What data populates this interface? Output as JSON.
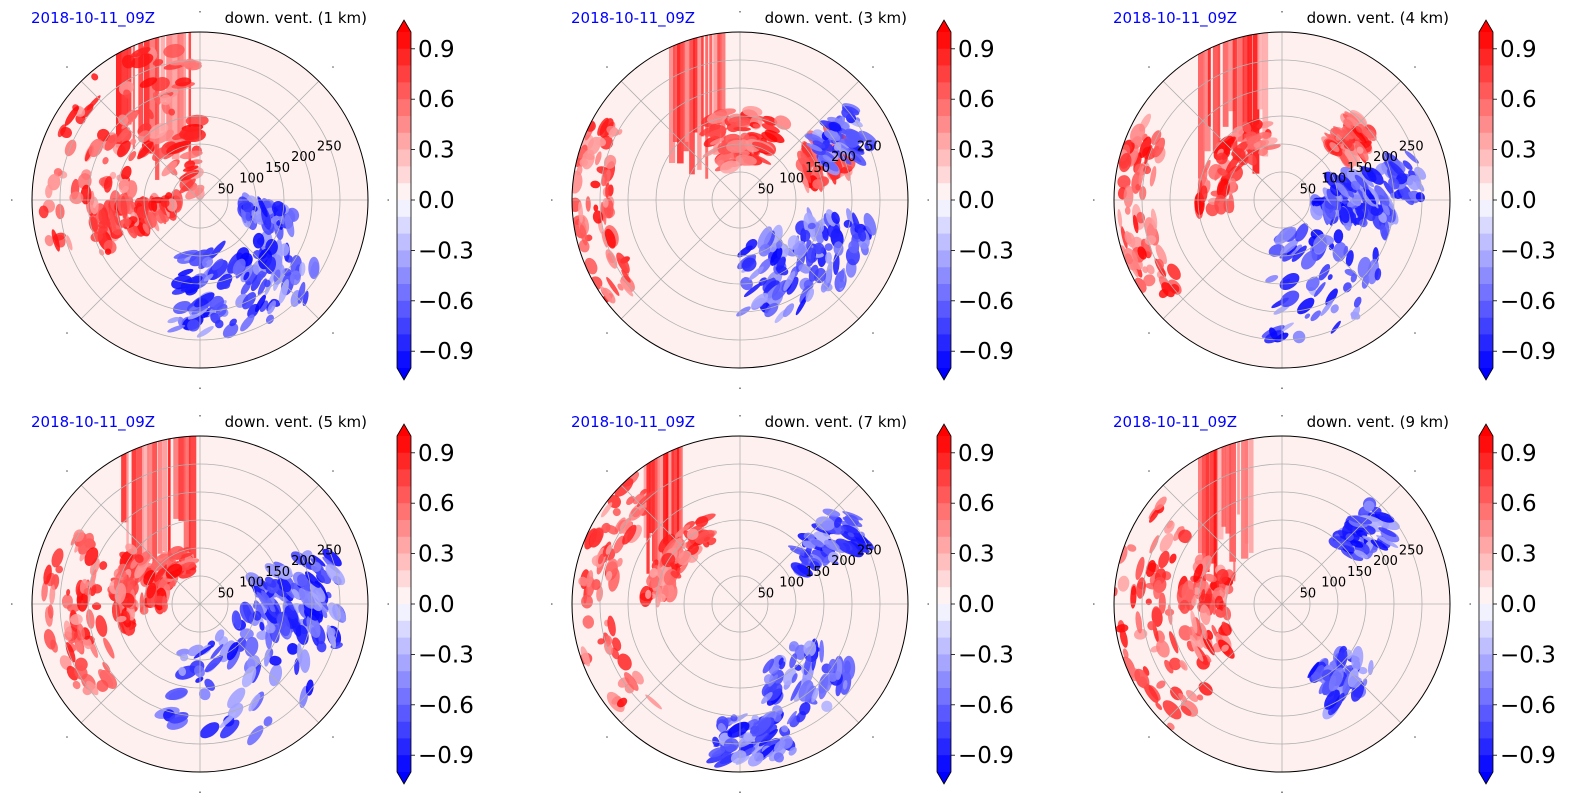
{
  "figure": {
    "rows": 2,
    "cols": 3
  },
  "colors": {
    "date_text": "#0000ff",
    "title_text": "#000000",
    "colormap": [
      "#0000ff",
      "#ffffff",
      "#ff0000"
    ],
    "grid": "#b0b0b0",
    "frame": "#000000"
  },
  "chart_data": [
    {
      "type": "heatmap",
      "projection": "polar",
      "date_label": "2018-10-11_09Z",
      "title": "down. vent. (1 km)",
      "radial_ticks": [
        "50",
        "100",
        "150",
        "200",
        "250"
      ],
      "radial_max": 300,
      "grid": true,
      "colorbar": {
        "min": -1.0,
        "max": 1.0,
        "ticks": [
          "0.9",
          "0.6",
          "0.3",
          "0.0",
          "−0.3",
          "−0.6",
          "−0.9"
        ],
        "extend": "both",
        "levels": 20
      },
      "features": {
        "red_spiral_bands": [
          [
            180,
            210,
            40,
            200
          ],
          [
            90,
            135,
            10,
            290
          ],
          [
            135,
            200,
            120,
            280
          ]
        ],
        "blue_regions": [
          [
            255,
            300,
            90,
            240
          ],
          [
            300,
            330,
            120,
            260
          ],
          [
            340,
            355,
            80,
            170
          ]
        ],
        "red_streaks_top": [
          [
            92,
            120
          ]
        ]
      }
    },
    {
      "type": "heatmap",
      "projection": "polar",
      "date_label": "2018-10-11_09Z",
      "title": "down. vent. (3 km)",
      "radial_ticks": [
        "50",
        "100",
        "150",
        "200",
        "250"
      ],
      "radial_max": 300,
      "grid": true,
      "colorbar": {
        "min": -1.0,
        "max": 1.0,
        "ticks": [
          "0.9",
          "0.6",
          "0.3",
          "0.0",
          "−0.3",
          "−0.6",
          "−0.9"
        ],
        "extend": "both",
        "levels": 20
      },
      "features": {
        "red_spiral_bands": [
          [
            150,
            220,
            230,
            300
          ],
          [
            60,
            120,
            60,
            160
          ],
          [
            10,
            40,
            120,
            220
          ]
        ],
        "blue_regions": [
          [
            270,
            320,
            80,
            220
          ],
          [
            320,
            350,
            120,
            240
          ],
          [
            20,
            40,
            160,
            260
          ]
        ],
        "red_streaks_top": [
          [
            95,
            115
          ]
        ]
      }
    },
    {
      "type": "heatmap",
      "projection": "polar",
      "date_label": "2018-10-11_09Z",
      "title": "down. vent. (4 km)",
      "radial_ticks": [
        "50",
        "100",
        "150",
        "200",
        "250"
      ],
      "radial_max": 300,
      "grid": true,
      "colorbar": {
        "min": -1.0,
        "max": 1.0,
        "ticks": [
          "0.9",
          "0.6",
          "0.3",
          "0.0",
          "−0.3",
          "−0.6",
          "−0.9"
        ],
        "extend": "both",
        "levels": 20
      },
      "features": {
        "red_spiral_bands": [
          [
            150,
            220,
            230,
            300
          ],
          [
            100,
            190,
            90,
            150
          ],
          [
            30,
            50,
            130,
            200
          ]
        ],
        "blue_regions": [
          [
            260,
            330,
            60,
            250
          ],
          [
            340,
            360,
            60,
            200
          ],
          [
            0,
            20,
            80,
            260
          ]
        ],
        "red_streaks_top": [
          [
            95,
            120
          ]
        ]
      }
    },
    {
      "type": "heatmap",
      "projection": "polar",
      "date_label": "2018-10-11_09Z",
      "title": "down. vent. (5 km)",
      "radial_ticks": [
        "50",
        "100",
        "150",
        "200",
        "250"
      ],
      "radial_max": 300,
      "grid": true,
      "colorbar": {
        "min": -1.0,
        "max": 1.0,
        "ticks": [
          "0.9",
          "0.6",
          "0.3",
          "0.0",
          "−0.3",
          "−0.6",
          "−0.9"
        ],
        "extend": "both",
        "levels": 20
      },
      "features": {
        "red_spiral_bands": [
          [
            150,
            220,
            180,
            280
          ],
          [
            100,
            190,
            60,
            110
          ],
          [
            140,
            200,
            120,
            160
          ]
        ],
        "blue_regions": [
          [
            250,
            340,
            60,
            260
          ],
          [
            340,
            360,
            80,
            260
          ],
          [
            0,
            25,
            100,
            250
          ]
        ],
        "red_streaks_top": [
          [
            92,
            118
          ]
        ]
      }
    },
    {
      "type": "heatmap",
      "projection": "polar",
      "date_label": "2018-10-11_09Z",
      "title": "down. vent. (7 km)",
      "radial_ticks": [
        "50",
        "100",
        "150",
        "200",
        "250"
      ],
      "radial_max": 300,
      "grid": true,
      "colorbar": {
        "min": -1.0,
        "max": 1.0,
        "ticks": [
          "0.9",
          "0.6",
          "0.3",
          "0.0",
          "−0.3",
          "−0.6",
          "−0.9"
        ],
        "extend": "both",
        "levels": 20
      },
      "features": {
        "red_spiral_bands": [
          [
            130,
            230,
            220,
            300
          ],
          [
            110,
            180,
            120,
            170
          ]
        ],
        "blue_regions": [
          [
            285,
            330,
            120,
            240
          ],
          [
            260,
            290,
            200,
            290
          ],
          [
            25,
            45,
            120,
            260
          ]
        ],
        "red_streaks_top": [
          [
            110,
            125
          ]
        ]
      }
    },
    {
      "type": "heatmap",
      "projection": "polar",
      "date_label": "2018-10-11_09Z",
      "title": "down. vent. (9 km)",
      "radial_ticks": [
        "50",
        "100",
        "150",
        "200",
        "250"
      ],
      "radial_max": 300,
      "grid": true,
      "colorbar": {
        "min": -1.0,
        "max": 1.0,
        "ticks": [
          "0.9",
          "0.6",
          "0.3",
          "0.0",
          "−0.3",
          "−0.6",
          "−0.9"
        ],
        "extend": "both",
        "levels": 20
      },
      "features": {
        "red_spiral_bands": [
          [
            140,
            230,
            200,
            300
          ],
          [
            150,
            220,
            100,
            180
          ]
        ],
        "blue_regions": [
          [
            295,
            325,
            130,
            210
          ],
          [
            30,
            50,
            150,
            240
          ]
        ],
        "red_streaks_top": [
          [
            100,
            120
          ]
        ]
      }
    }
  ]
}
